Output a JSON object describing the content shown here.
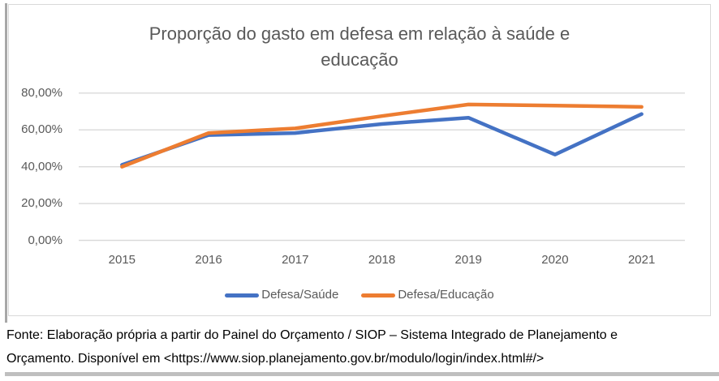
{
  "chart": {
    "title_line1": "Proporção do gasto em defesa em relação à saúde e",
    "title_line2": "educação"
  },
  "chart_data": {
    "type": "line",
    "title": "Proporção do gasto em defesa em relação à saúde e educação",
    "x": [
      "2015",
      "2016",
      "2017",
      "2018",
      "2019",
      "2020",
      "2021"
    ],
    "series": [
      {
        "name": "Defesa/Saúde",
        "color": "#4472C4",
        "values": [
          41.0,
          57.2,
          58.3,
          63.2,
          66.6,
          46.6,
          68.6
        ]
      },
      {
        "name": "Defesa/Educação",
        "color": "#ED7D31",
        "values": [
          40.0,
          58.3,
          60.8,
          67.5,
          73.8,
          73.2,
          72.5
        ]
      }
    ],
    "ylim": [
      0,
      80
    ],
    "ytick_values": [
      80,
      60,
      40,
      20,
      0
    ],
    "ytick_labels": [
      "80,00%",
      "60,00%",
      "40,00%",
      "20,00%",
      "0,00%"
    ],
    "grid": true,
    "gridline_color": "#D9D9D9",
    "legend_position": "bottom",
    "value_format": "percent_pt_BR"
  },
  "caption": {
    "line1": "Fonte: Elaboração própria a partir do Painel do Orçamento / SIOP – Sistema Integrado de Planejamento e",
    "line2": "Orçamento. Disponível em <https://www.siop.planejamento.gov.br/modulo/login/index.html#/>"
  },
  "colors": {
    "series_saude": "#4472C4",
    "series_educacao": "#ED7D31",
    "title_text": "#595959",
    "axis_text": "#595959",
    "frame_border": "#D9D9D9"
  }
}
